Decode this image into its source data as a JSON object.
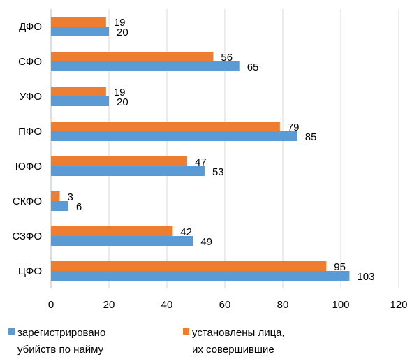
{
  "chart_data": {
    "type": "bar",
    "orientation": "horizontal",
    "categories": [
      "ДФО",
      "СФО",
      "УФО",
      "ПФО",
      "ЮФО",
      "СКФО",
      "СЗФО",
      "ЦФО"
    ],
    "series": [
      {
        "name": "установлены лица, их совершившие",
        "color": "#ed7d31",
        "values": [
          19,
          56,
          19,
          79,
          47,
          3,
          42,
          95
        ]
      },
      {
        "name": "зарегистрировано убийств по найму",
        "color": "#5b9bd5",
        "values": [
          20,
          65,
          20,
          85,
          53,
          6,
          49,
          103
        ]
      }
    ],
    "xlim": [
      0,
      120
    ],
    "x_ticks": [
      "0",
      "20",
      "40",
      "60",
      "80",
      "100",
      "120"
    ],
    "grid": true,
    "legend": {
      "position": "bottom",
      "items": [
        {
          "series": 1,
          "lines": [
            "зарегистрировано",
            "убийств по найму"
          ]
        },
        {
          "series": 0,
          "lines": [
            "установлены лица,",
            "их совершившие"
          ]
        }
      ]
    }
  }
}
